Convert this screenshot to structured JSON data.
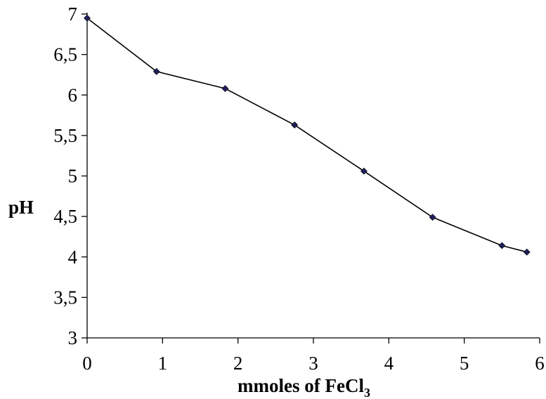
{
  "chart_data": {
    "type": "line",
    "title": "",
    "xlabel": "mmoles of FeCl",
    "xlabel_subscript": "3",
    "ylabel": "pH",
    "xlim": [
      0,
      6
    ],
    "ylim": [
      3,
      7
    ],
    "x_ticks": [
      "0",
      "1",
      "2",
      "3",
      "4",
      "5",
      "6"
    ],
    "y_ticks": [
      "3",
      "3,5",
      "4",
      "4,5",
      "5",
      "5,5",
      "6",
      "6,5",
      "7"
    ],
    "grid": false,
    "legend": "none",
    "series": [
      {
        "x": [
          0,
          0.92,
          1.83,
          2.75,
          3.67,
          4.58,
          5.5,
          5.83
        ],
        "y": [
          6.95,
          6.29,
          6.08,
          5.63,
          5.06,
          4.49,
          4.14,
          4.06
        ]
      }
    ],
    "colors": {
      "marker": "#1f1f5c",
      "line": "#000000"
    }
  }
}
